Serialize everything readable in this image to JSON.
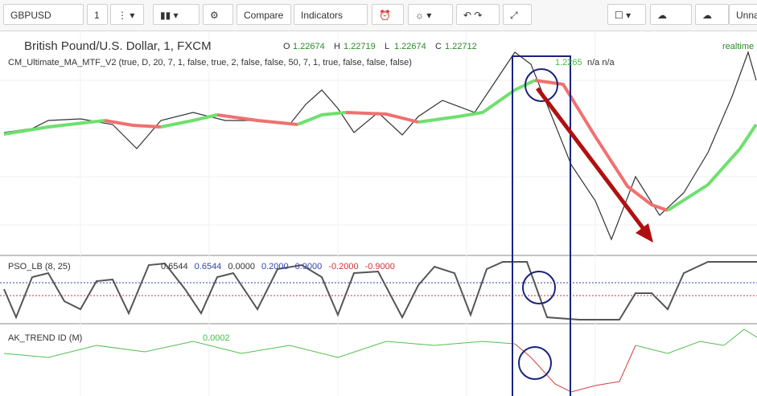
{
  "toolbar": {
    "symbol": "GBPUSD",
    "interval": "1",
    "compare": "Compare",
    "indicators": "Indicators",
    "layout": "Unna"
  },
  "main_pane": {
    "title": "British Pound/U.S. Dollar, 1, FXCM",
    "ohlc": [
      {
        "label": "O",
        "value": "1.22674"
      },
      {
        "label": "H",
        "value": "1.22719"
      },
      {
        "label": "L",
        "value": "1.22674"
      },
      {
        "label": "C",
        "value": "1.22712"
      }
    ],
    "status": "realtime",
    "indicator": {
      "name": "CM_Ultimate_MA_MTF_V2 (true, D, 20, 7, 1, false, true, 2, false, false, 50, 7, 1, true, false, false, false)",
      "value": "1.2265",
      "extra": "n/a n/a"
    }
  },
  "pso_pane": {
    "name": "PSO_LB (8, 25)",
    "values": [
      "0.6544",
      "0.6544",
      "0.0000",
      "0.2000",
      "0.9000",
      "-0.2000",
      "-0.9000"
    ]
  },
  "ak_pane": {
    "name": "AK_TREND ID (M)",
    "value": "0.0002"
  }
}
